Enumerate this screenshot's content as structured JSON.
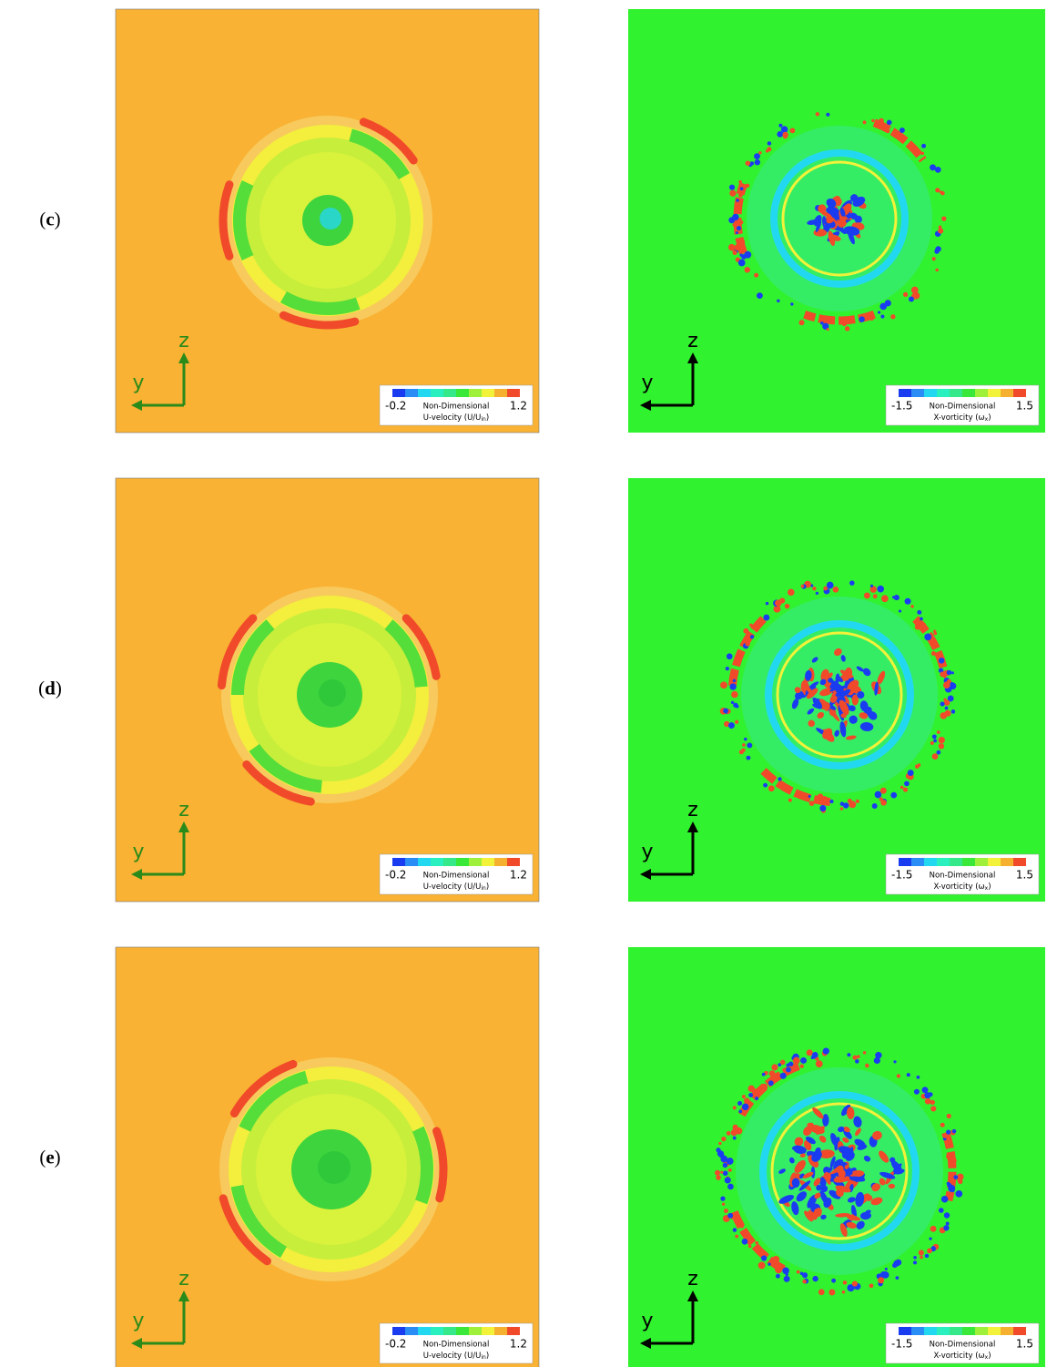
{
  "panels": [
    {
      "label": [
        "(",
        "c",
        ")"
      ]
    },
    {
      "label": [
        "(",
        "d",
        ")"
      ]
    },
    {
      "label": [
        "(",
        "e",
        ")"
      ]
    }
  ],
  "axes": {
    "horizontal": "y",
    "vertical": "z"
  },
  "u_plot": {
    "colorbar": {
      "min": -0.2,
      "max": 1.2,
      "title": "Non-Dimensional",
      "quantity": [
        "U-velocity (U/U",
        "in",
        ")"
      ],
      "colors": [
        "#1a3cf0",
        "#2a8cf5",
        "#22d8f0",
        "#2af0c0",
        "#35e88a",
        "#3ae83a",
        "#9ef03a",
        "#f2f23a",
        "#f6b030",
        "#f04a2a"
      ]
    }
  },
  "vorticity_plot": {
    "colorbar": {
      "min": -1.5,
      "max": 1.5,
      "title": "Non-Dimensional",
      "quantity": [
        "X-vorticity (ω",
        "x",
        ")"
      ],
      "colors": [
        "#1a3cf0",
        "#2a8cf5",
        "#22d8f0",
        "#2af0c0",
        "#35e88a",
        "#3ae83a",
        "#9ef03a",
        "#f2f23a",
        "#f6b030",
        "#f04a2a"
      ]
    }
  }
}
